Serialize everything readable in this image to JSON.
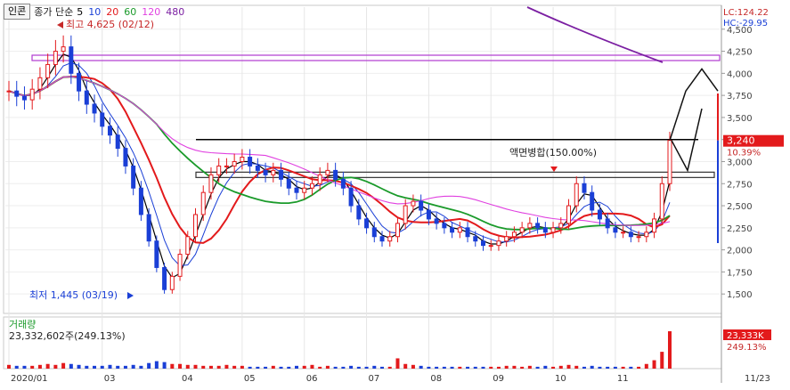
{
  "header": {
    "title_button": "인콘",
    "chart_kind": "종가 단순",
    "ma_periods": [
      {
        "label": "5",
        "color": "#000000"
      },
      {
        "label": "10",
        "color": "#1a3fd6"
      },
      {
        "label": "20",
        "color": "#e31a1c"
      },
      {
        "label": "60",
        "color": "#1a9a2a"
      },
      {
        "label": "120",
        "color": "#e040e0"
      },
      {
        "label": "480",
        "color": "#7b1fa2"
      }
    ],
    "lc_text": "LC:124.22",
    "hc_text": "HC:-29.95"
  },
  "annotations": {
    "high": "최고 4,625 (02/12)",
    "low": "최저 1,445 (03/19)",
    "event": "액면병합(150.00%)"
  },
  "current": {
    "price_label": "3,240",
    "change_label": "10.39%"
  },
  "volume_panel": {
    "title": "거래량",
    "value": "23,332,602주(249.13%)",
    "box_label": "23,333K",
    "box_change": "249.13%"
  },
  "chart_data": {
    "type": "candlestick",
    "x_axis_labels": [
      "2020/01",
      "03",
      "04",
      "05",
      "06",
      "07",
      "08",
      "09",
      "10",
      "11",
      "11/23"
    ],
    "price_axis_ticks": [
      "4,500",
      "4,250",
      "4,000",
      "3,750",
      "3,500",
      "3,250",
      "3,000",
      "2,750",
      "2,500",
      "2,250",
      "2,000",
      "1,750",
      "1,500"
    ],
    "ylim": [
      1300,
      4750
    ],
    "price_close_series": [
      3800,
      3740,
      3700,
      3820,
      3950,
      4100,
      4250,
      4300,
      4000,
      3800,
      3650,
      3550,
      3400,
      3300,
      3150,
      2950,
      2700,
      2400,
      2100,
      1800,
      1550,
      1700,
      1950,
      2150,
      2400,
      2650,
      2850,
      2950,
      2950,
      3000,
      3050,
      2950,
      2900,
      2850,
      2900,
      2800,
      2700,
      2650,
      2700,
      2750,
      2850,
      2900,
      2800,
      2700,
      2500,
      2350,
      2250,
      2150,
      2100,
      2150,
      2300,
      2500,
      2550,
      2450,
      2350,
      2300,
      2250,
      2200,
      2250,
      2150,
      2100,
      2050,
      2050,
      2100,
      2150,
      2200,
      2250,
      2300,
      2250,
      2200,
      2250,
      2300,
      2500,
      2750,
      2650,
      2450,
      2350,
      2250,
      2200,
      2200,
      2150,
      2150,
      2200,
      2350,
      2750,
      3240
    ],
    "volume_series": [
      4,
      3,
      3,
      3,
      4,
      5,
      4,
      6,
      5,
      4,
      3,
      3,
      3,
      4,
      3,
      3,
      4,
      3,
      6,
      8,
      7,
      5,
      5,
      4,
      4,
      3,
      3,
      3,
      4,
      3,
      3,
      2,
      2,
      2,
      3,
      2,
      2,
      3,
      3,
      4,
      2,
      3,
      2,
      2,
      3,
      2,
      2,
      3,
      2,
      2,
      11,
      5,
      4,
      3,
      2,
      2,
      2,
      2,
      2,
      2,
      2,
      2,
      2,
      2,
      3,
      3,
      2,
      3,
      2,
      3,
      2,
      3,
      4,
      3,
      2,
      3,
      2,
      2,
      2,
      2,
      2,
      2,
      5,
      9,
      18,
      40
    ],
    "horizontal_levels": [
      4175,
      3250,
      2850
    ],
    "projection_path": [
      [
        3240,
        0
      ],
      [
        3800,
        1
      ],
      [
        4050,
        2
      ],
      [
        3800,
        3
      ]
    ]
  }
}
